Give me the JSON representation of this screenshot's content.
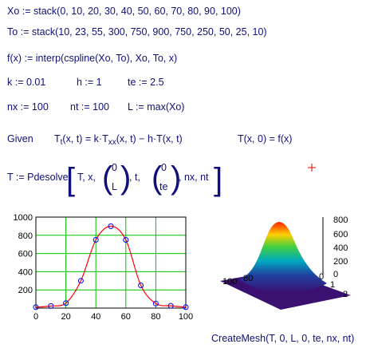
{
  "worksheet": {
    "line1": "Xo := stack(0, 10, 20, 30, 40, 50, 60, 70, 80, 90, 100)",
    "line2": "To := stack(10, 23, 55, 300, 750, 900, 750, 250, 50, 25, 10)",
    "line3": "f(x) := interp(cspline(Xo, To), Xo, To, x)",
    "k": "k := 0.01",
    "h": "h := 1",
    "te": "te := 2.5",
    "nx": "nx := 100",
    "nt": "nt := 100",
    "L": "L := max(Xo)",
    "given": "Given",
    "pde": [
      "T",
      "t",
      "(x, t) = k·T",
      "xx",
      "(x, t) − h·T(x, t)"
    ],
    "initial": "T(x, 0) = f(x)",
    "solve": [
      "T := Pdesolve",
      "T, x,",
      "0",
      "L",
      ", t,",
      "0",
      "te",
      ", nx, nt"
    ],
    "mesh": "CreateMesh(T, 0, L, 0, te, nx, nt)"
  },
  "chart_data": {
    "type": "line",
    "x": [
      0,
      10,
      20,
      30,
      40,
      50,
      60,
      70,
      80,
      90,
      100
    ],
    "series": [
      {
        "color": "#ff0000",
        "values": [
          10,
          23,
          55,
          300,
          750,
          900,
          750,
          250,
          50,
          25,
          10
        ],
        "style": "spline"
      },
      {
        "color": "#0000ff",
        "values": [
          10,
          23,
          55,
          300,
          750,
          900,
          750,
          250,
          50,
          25,
          10
        ],
        "style": "circle"
      }
    ],
    "xlim": [
      0,
      100
    ],
    "ylim": [
      0,
      1000
    ],
    "xticks": [
      0,
      20,
      40,
      60,
      80,
      100
    ],
    "yticks": [
      200,
      400,
      600,
      800,
      1000
    ],
    "grid": true,
    "grid_color": "#00c000"
  },
  "surface_plot": {
    "z_labels": [
      "800",
      "600",
      "400",
      "200",
      "0"
    ],
    "x_labels": [
      "100",
      "80"
    ],
    "y_labels": [
      "0",
      "1",
      "2"
    ]
  }
}
